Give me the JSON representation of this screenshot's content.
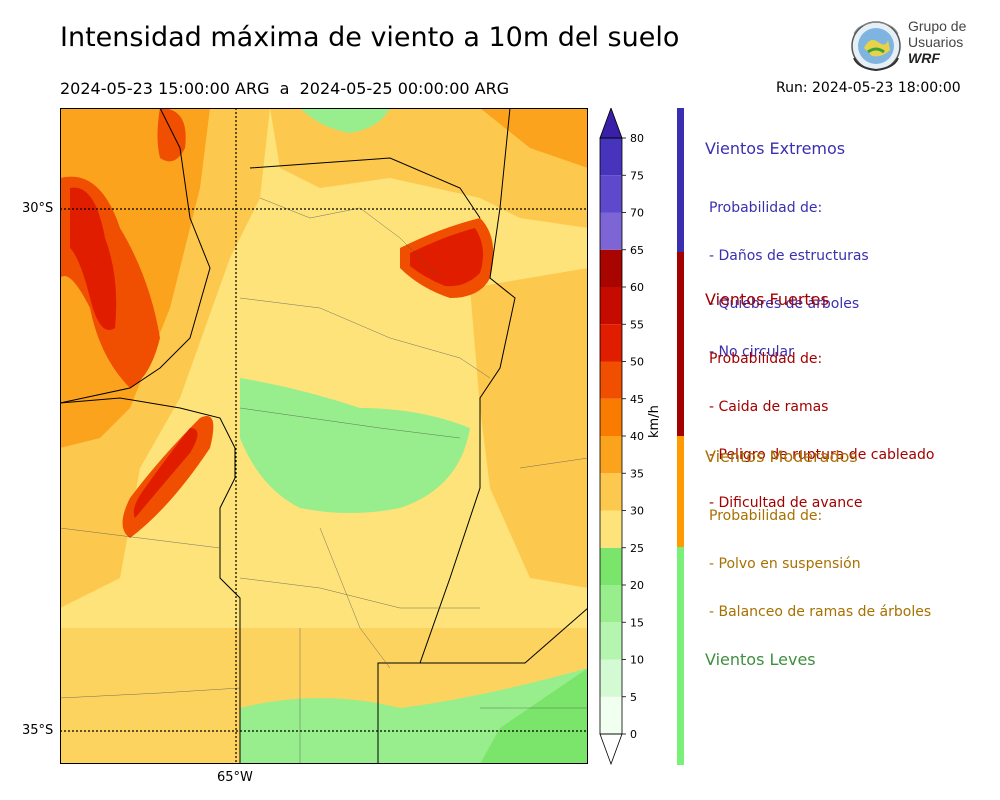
{
  "header": {
    "title": "Intensidad máxima de viento a 10m del suelo",
    "period": "2024-05-23 15:00:00 ARG  a  2024-05-25 00:00:00 ARG",
    "run": "Run: 2024-05-23 18:00:00"
  },
  "logo": {
    "line1": "Grupo de",
    "line2": "Usuarios",
    "line3": "WRF"
  },
  "map": {
    "lat_labels": [
      "30°S",
      "35°S"
    ],
    "lon_labels": [
      "65°W"
    ]
  },
  "colorbar": {
    "unit": "km/h",
    "ticks": [
      "0",
      "5",
      "10",
      "15",
      "20",
      "25",
      "30",
      "35",
      "40",
      "45",
      "50",
      "55",
      "60",
      "65",
      "70",
      "75",
      "80"
    ],
    "colors": [
      "#f0fff0",
      "#d4fad4",
      "#b6f5b0",
      "#98ee8c",
      "#7ae56a",
      "#fde37a",
      "#fdc84e",
      "#fca31e",
      "#f97c00",
      "#f04e00",
      "#e11d00",
      "#c50b00",
      "#a80400",
      "#7e65d6",
      "#5e48cc",
      "#4634bc"
    ],
    "extend_color": "#3a1fa8"
  },
  "categories": [
    {
      "title": "Vientos Extremos",
      "color": "#3a2fb0",
      "subtitle": "Probabilidad de:",
      "items": [
        "- Daños de estructuras",
        "- Quiebres de árboles",
        "- No circular"
      ]
    },
    {
      "title": "Vientos Fuertes",
      "color": "#a30000",
      "subtitle": "Probabilidad de:",
      "items": [
        "- Caida de ramas",
        "- Peligro de ruptura de cableado",
        "- Dificultad de avance"
      ]
    },
    {
      "title": "Vientos Moderados",
      "color": "#a87000",
      "subtitle": "Probabilidad de:",
      "items": [
        "- Polvo en suspensión",
        "- Balanceo de ramas de árboles"
      ]
    },
    {
      "title": "Vientos Leves",
      "color": "#3f8f3f",
      "subtitle": "",
      "items": []
    }
  ],
  "category_bar_colors": [
    "#3a2fb0",
    "#a30000",
    "#ff9a00",
    "#79f079"
  ]
}
